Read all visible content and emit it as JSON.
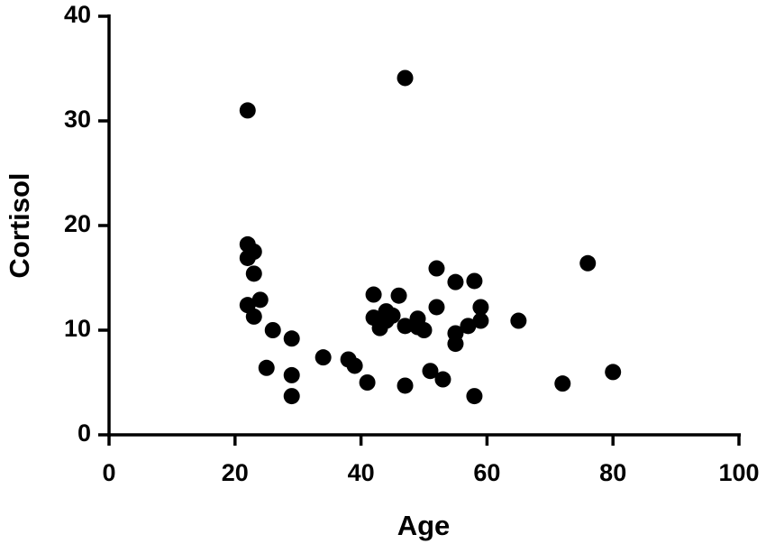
{
  "chart_data": {
    "type": "scatter",
    "xlabel": "Age",
    "ylabel": "Cortisol",
    "color": "#000000",
    "x": [
      22,
      47,
      22,
      23,
      22,
      23,
      22,
      24,
      23,
      26,
      29,
      25,
      29,
      29,
      34,
      38,
      39,
      41,
      42,
      42,
      43,
      44,
      45,
      44,
      46,
      47,
      49,
      49,
      50,
      52,
      52,
      55,
      58,
      59,
      55,
      57,
      59,
      55,
      51,
      53,
      47,
      58,
      65,
      76,
      72,
      80
    ],
    "y": [
      31.0,
      34.1,
      18.2,
      17.5,
      16.9,
      15.4,
      12.4,
      12.9,
      11.3,
      10.0,
      9.2,
      6.4,
      5.7,
      3.7,
      7.4,
      7.2,
      6.6,
      5.0,
      13.4,
      11.2,
      10.2,
      11.8,
      11.4,
      10.9,
      13.3,
      10.4,
      11.1,
      10.3,
      10.0,
      15.9,
      12.2,
      14.6,
      14.7,
      12.2,
      9.7,
      10.4,
      10.9,
      8.7,
      6.1,
      5.3,
      4.7,
      3.7,
      10.9,
      16.4,
      4.9,
      6.0
    ],
    "xlim": [
      0,
      100
    ],
    "xticks": [
      0,
      20,
      40,
      60,
      80,
      100
    ],
    "ylim": [
      0,
      40
    ],
    "yticks": [
      0,
      10,
      20,
      30,
      40
    ]
  }
}
